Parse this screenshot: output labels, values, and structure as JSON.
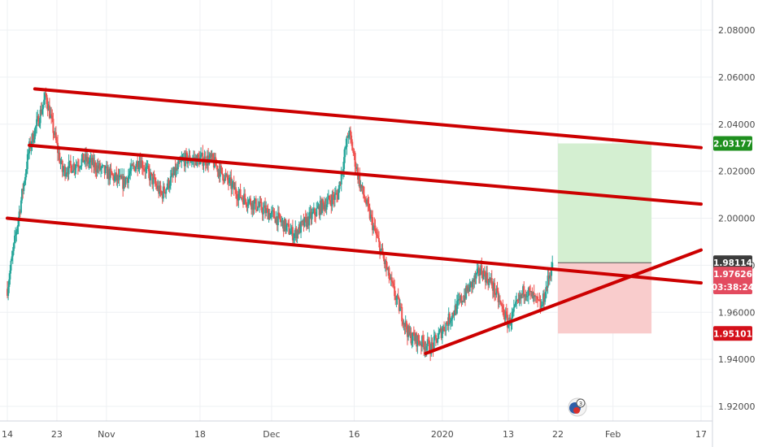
{
  "chart_data": {
    "type": "candlestick",
    "price_axis": {
      "ticks": [
        {
          "value": 2.08,
          "label": "2.08000"
        },
        {
          "value": 2.06,
          "label": "2.06000"
        },
        {
          "value": 2.04,
          "label": "2.04000"
        },
        {
          "value": 2.02,
          "label": "2.02000"
        },
        {
          "value": 2.0,
          "label": "2.00000"
        },
        {
          "value": 1.98,
          "label": "1.98000"
        },
        {
          "value": 1.96,
          "label": "1.96000"
        },
        {
          "value": 1.94,
          "label": "1.94000"
        },
        {
          "value": 1.92,
          "label": "1.92000"
        }
      ],
      "ylim": [
        1.912,
        2.1
      ]
    },
    "time_axis": {
      "ticks": [
        "14",
        "23",
        "Nov",
        "18",
        "Dec",
        "16",
        "2020",
        "13",
        "22",
        "Feb",
        "17"
      ],
      "range": [
        "2019-10-14",
        "2020-02-17"
      ]
    },
    "candles_trend": {
      "start_date": "2019-10-14",
      "end_date": "2020-01-21",
      "last_price": 1.9811,
      "anchors": [
        {
          "date": "2019-10-14",
          "price": 1.97
        },
        {
          "date": "2019-10-16",
          "price": 2.0
        },
        {
          "date": "2019-10-18",
          "price": 2.03
        },
        {
          "date": "2019-10-21",
          "price": 2.052
        },
        {
          "date": "2019-10-24",
          "price": 2.02
        },
        {
          "date": "2019-10-28",
          "price": 2.025
        },
        {
          "date": "2019-11-04",
          "price": 2.015
        },
        {
          "date": "2019-11-07",
          "price": 2.025
        },
        {
          "date": "2019-11-11",
          "price": 2.01
        },
        {
          "date": "2019-11-15",
          "price": 2.025
        },
        {
          "date": "2019-11-20",
          "price": 2.025
        },
        {
          "date": "2019-11-25",
          "price": 2.01
        },
        {
          "date": "2019-12-02",
          "price": 2.0
        },
        {
          "date": "2019-12-05",
          "price": 1.993
        },
        {
          "date": "2019-12-10",
          "price": 2.005
        },
        {
          "date": "2019-12-13",
          "price": 2.01
        },
        {
          "date": "2019-12-15",
          "price": 2.037
        },
        {
          "date": "2019-12-17",
          "price": 2.015
        },
        {
          "date": "2019-12-19",
          "price": 2.0
        },
        {
          "date": "2019-12-23",
          "price": 1.97
        },
        {
          "date": "2019-12-26",
          "price": 1.95
        },
        {
          "date": "2019-12-30",
          "price": 1.945
        },
        {
          "date": "2020-01-03",
          "price": 1.96
        },
        {
          "date": "2020-01-08",
          "price": 1.978
        },
        {
          "date": "2020-01-10",
          "price": 1.972
        },
        {
          "date": "2020-01-13",
          "price": 1.955
        },
        {
          "date": "2020-01-16",
          "price": 1.97
        },
        {
          "date": "2020-01-19",
          "price": 1.962
        },
        {
          "date": "2020-01-21",
          "price": 1.9811
        }
      ]
    },
    "trendlines": [
      {
        "name": "upper-channel-line",
        "from": {
          "date": "2019-10-19",
          "price": 2.055
        },
        "to": {
          "date": "2020-02-17",
          "price": 2.03
        }
      },
      {
        "name": "middle-channel-line",
        "from": {
          "date": "2019-10-18",
          "price": 2.031
        },
        "to": {
          "date": "2020-02-17",
          "price": 2.006
        }
      },
      {
        "name": "lower-channel-line",
        "from": {
          "date": "2019-10-14",
          "price": 2.0
        },
        "to": {
          "date": "2020-02-17",
          "price": 1.9725
        }
      },
      {
        "name": "rising-support-line",
        "from": {
          "date": "2019-12-29",
          "price": 1.9425
        },
        "to": {
          "date": "2020-02-17",
          "price": 1.9865
        }
      }
    ],
    "long_position": {
      "start_date": "2020-01-22",
      "end_date": "2020-02-08",
      "entry": 1.9811,
      "target": 2.0318,
      "stop": 1.951
    },
    "price_tags": [
      {
        "name": "target-price-tag",
        "value": 2.0318,
        "label": "2.03177",
        "color": "#1e8f1e"
      },
      {
        "name": "entry-price-tag",
        "value": 1.9811,
        "label": "1.98114",
        "color": "#3c3c3c"
      },
      {
        "name": "last-price-tag",
        "value": 1.9763,
        "label": "1.97626",
        "color": "#e34b5f"
      },
      {
        "name": "countdown-tag",
        "value": 1.9708,
        "label": "03:38:24",
        "color": "#e34b5f"
      },
      {
        "name": "stop-price-tag",
        "value": 1.951,
        "label": "1.95101",
        "color": "#d4101a"
      }
    ],
    "colors": {
      "up": "#26a69a",
      "down": "#ef5350",
      "trendline": "#cc0000",
      "profit_zone": "#d4efd1",
      "loss_zone": "#f9cccc",
      "grid": "#eef0f3"
    },
    "grid": true
  }
}
